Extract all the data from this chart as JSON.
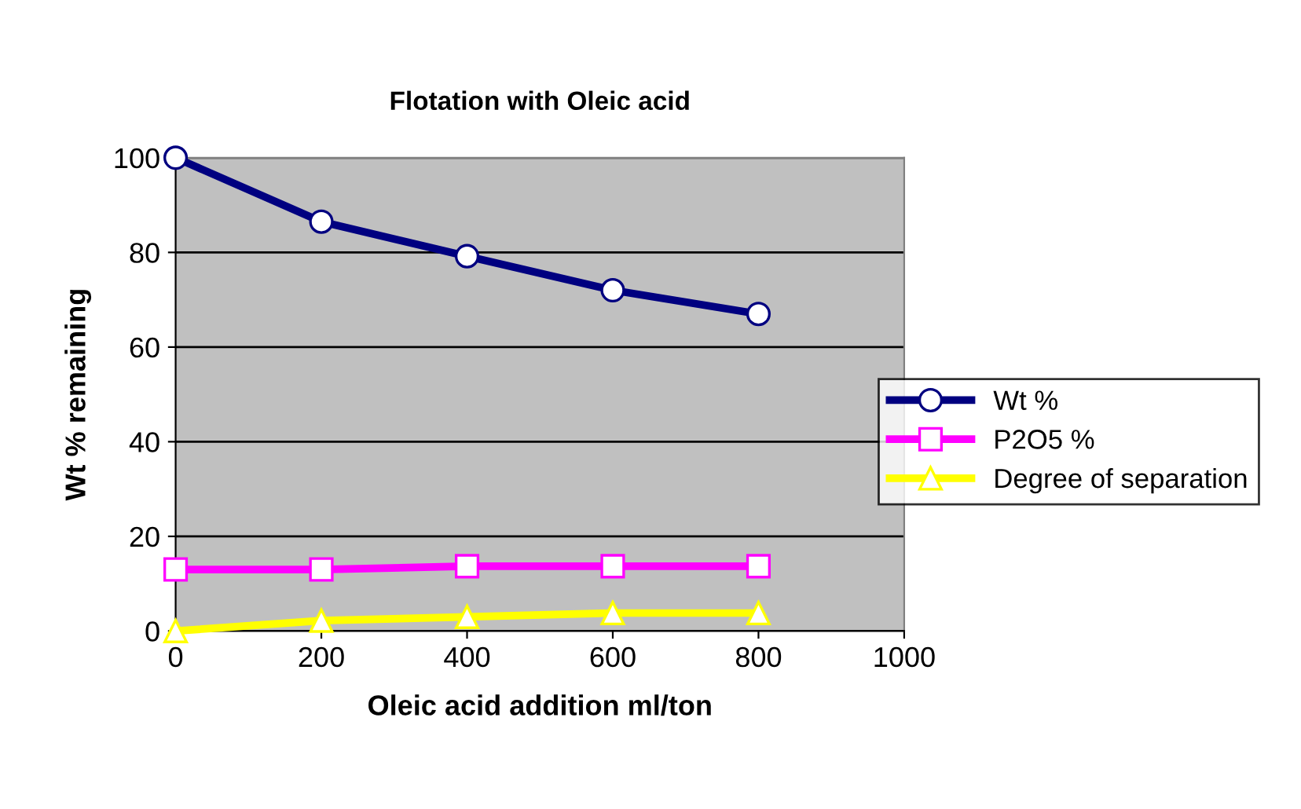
{
  "chart_data": {
    "type": "line",
    "title": "Flotation with Oleic acid",
    "xlabel": "Oleic acid addition ml/ton",
    "ylabel": "Wt % remaining",
    "x": [
      0,
      200,
      400,
      600,
      800
    ],
    "series": [
      {
        "name": "Wt %",
        "color": "#000080",
        "marker": "circle",
        "values": [
          100,
          86.5,
          79.2,
          72,
          67
        ]
      },
      {
        "name": "P2O5 %",
        "color": "#ff00ff",
        "marker": "square",
        "values": [
          13,
          13,
          13.7,
          13.7,
          13.7
        ]
      },
      {
        "name": "Degree of separation",
        "color": "#ffff00",
        "marker": "triangle",
        "values": [
          0,
          2.2,
          3,
          3.8,
          3.8
        ]
      }
    ],
    "xlim": [
      0,
      1000
    ],
    "xticks": [
      0,
      200,
      400,
      600,
      800,
      1000
    ],
    "ylim": [
      0,
      100
    ],
    "yticks": [
      0,
      20,
      40,
      60,
      80,
      100
    ],
    "grid": "y",
    "legend": "right"
  }
}
